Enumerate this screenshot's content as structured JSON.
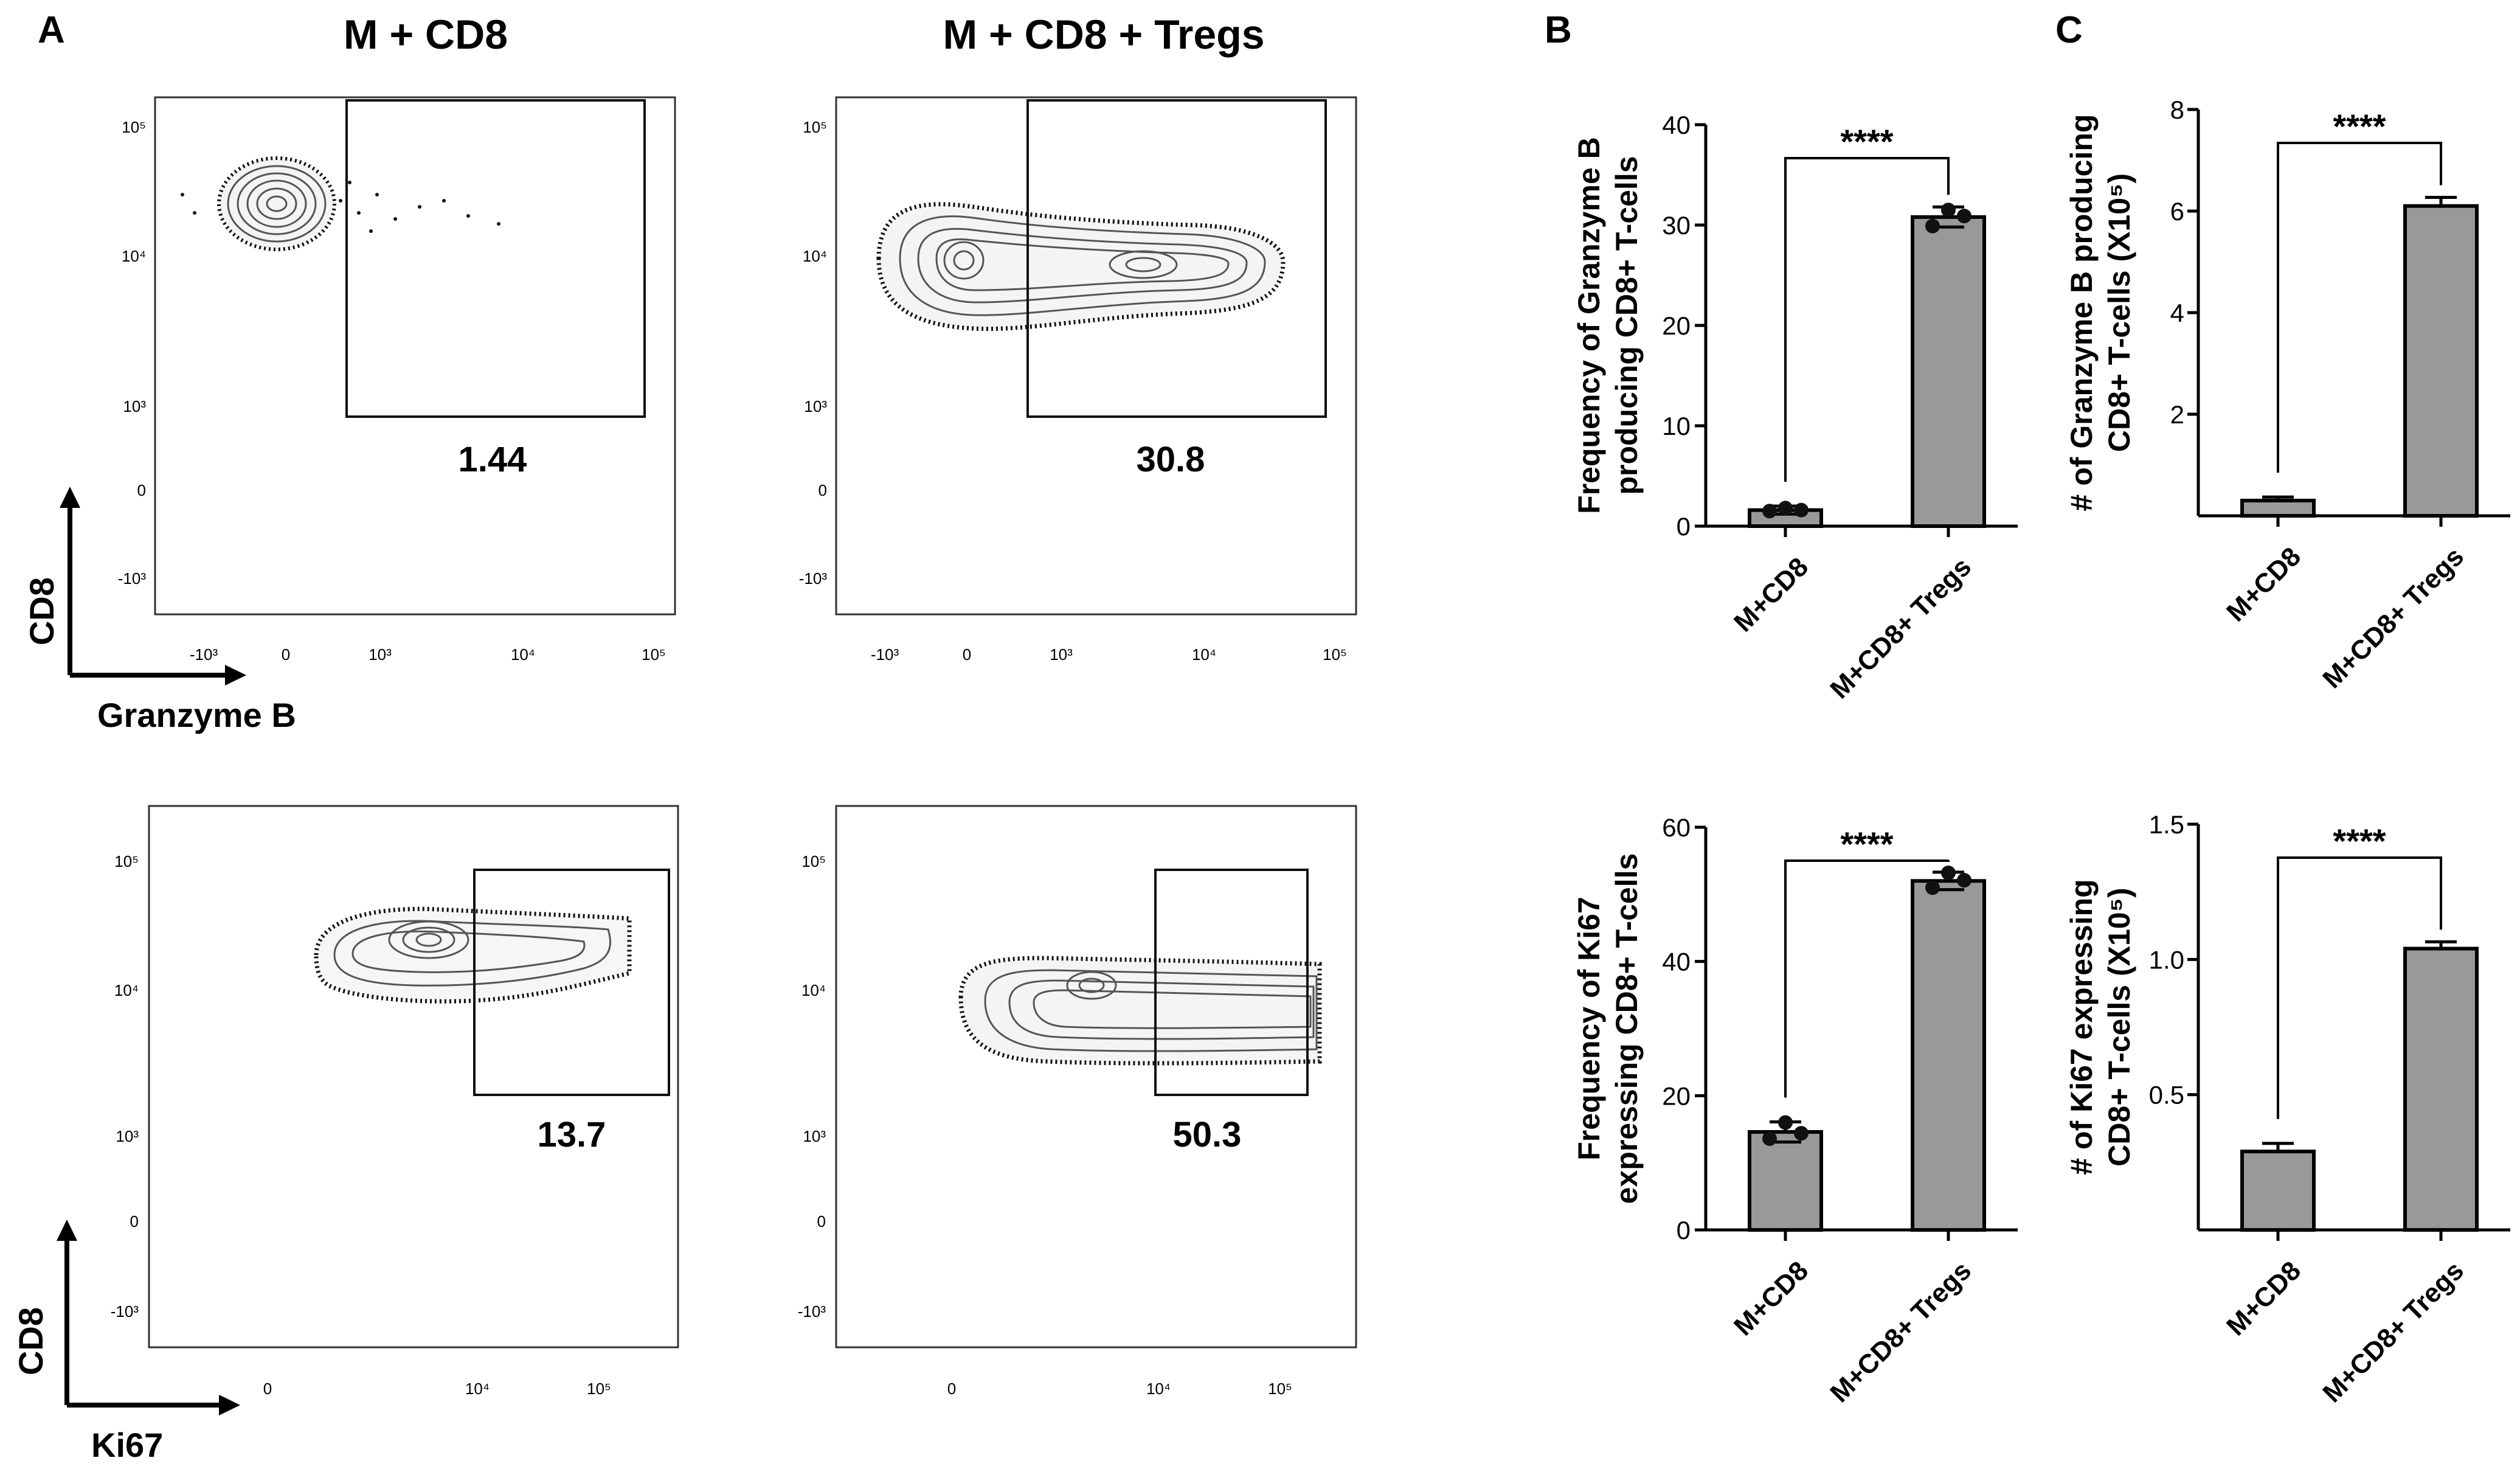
{
  "panel_labels": [
    "A",
    "B",
    "C"
  ],
  "chart_data": [
    {
      "type": "scatter",
      "panel": "A",
      "row": 1,
      "title": "M + CD8",
      "xlabel": "Granzyme B",
      "ylabel": "CD8",
      "x_ticks": [
        "-10³",
        "0",
        "10³",
        "10⁴",
        "10⁵"
      ],
      "y_ticks": [
        "10⁵",
        "10⁴",
        "10³",
        "0",
        "-10³"
      ],
      "gate_value": "1.44"
    },
    {
      "type": "scatter",
      "panel": "A",
      "row": 1,
      "title": "M + CD8 + Tregs",
      "xlabel": "Granzyme B",
      "ylabel": "CD8",
      "x_ticks": [
        "-10³",
        "0",
        "10³",
        "10⁴",
        "10⁵"
      ],
      "y_ticks": [
        "10⁵",
        "10⁴",
        "10³",
        "0",
        "-10³"
      ],
      "gate_value": "30.8"
    },
    {
      "type": "scatter",
      "panel": "A",
      "row": 2,
      "title": "M + CD8",
      "xlabel": "Ki67",
      "ylabel": "CD8",
      "x_ticks": [
        "0",
        "10⁴",
        "10⁵"
      ],
      "y_ticks": [
        "10⁵",
        "10⁴",
        "10³",
        "0",
        "-10³"
      ],
      "gate_value": "13.7"
    },
    {
      "type": "scatter",
      "panel": "A",
      "row": 2,
      "title": "M + CD8 + Tregs",
      "xlabel": "Ki67",
      "ylabel": "CD8",
      "x_ticks": [
        "0",
        "10⁴",
        "10⁵"
      ],
      "y_ticks": [
        "10⁵",
        "10⁴",
        "10³",
        "0",
        "-10³"
      ],
      "gate_value": "50.3"
    },
    {
      "type": "bar",
      "panel": "B",
      "ylabel_lines": [
        "Frequency of Granzyme B",
        "producing CD8+ T-cells"
      ],
      "categories": [
        "M+CD8",
        "M+CD8+ Tregs"
      ],
      "values": [
        1.6,
        30.8
      ],
      "errors": [
        0.4,
        1.0
      ],
      "points": [
        [
          1.5,
          1.8,
          1.6
        ],
        [
          29.9,
          31.5,
          30.9
        ]
      ],
      "ylim": [
        0,
        40
      ],
      "yticks": [
        "0",
        "10",
        "20",
        "30",
        "40"
      ],
      "significance": "****"
    },
    {
      "type": "bar",
      "panel": "B",
      "ylabel_lines": [
        "Frequency of Ki67",
        "expressing CD8+ T-cells"
      ],
      "categories": [
        "M+CD8",
        "M+CD8+ Tregs"
      ],
      "values": [
        14.6,
        52.0
      ],
      "errors": [
        1.5,
        1.3
      ],
      "points": [
        [
          13.6,
          16.0,
          14.4
        ],
        [
          51.0,
          53.2,
          52.1
        ]
      ],
      "ylim": [
        0,
        60
      ],
      "yticks": [
        "0",
        "20",
        "40",
        "60"
      ],
      "significance": "****"
    },
    {
      "type": "bar",
      "panel": "C",
      "ylabel_lines": [
        "# of Granzyme B producing",
        "CD8+ T-cells (X10⁵)"
      ],
      "categories": [
        "M+CD8",
        "M+CD8+ Tregs"
      ],
      "values": [
        0.3,
        6.1
      ],
      "errors": [
        0.07,
        0.17
      ],
      "ylim": [
        0,
        8
      ],
      "yticks": [
        "2",
        "4",
        "6",
        "8"
      ],
      "significance": "****"
    },
    {
      "type": "bar",
      "panel": "C",
      "ylabel_lines": [
        "# of Ki67 expressing",
        "CD8+ T-cells (X10⁵)"
      ],
      "categories": [
        "M+CD8",
        "M+CD8+ Tregs"
      ],
      "values": [
        0.29,
        1.04
      ],
      "errors": [
        0.03,
        0.025
      ],
      "ylim": [
        0,
        1.5
      ],
      "yticks": [
        "0.5",
        "1.0",
        "1.5"
      ],
      "significance": "****"
    }
  ]
}
